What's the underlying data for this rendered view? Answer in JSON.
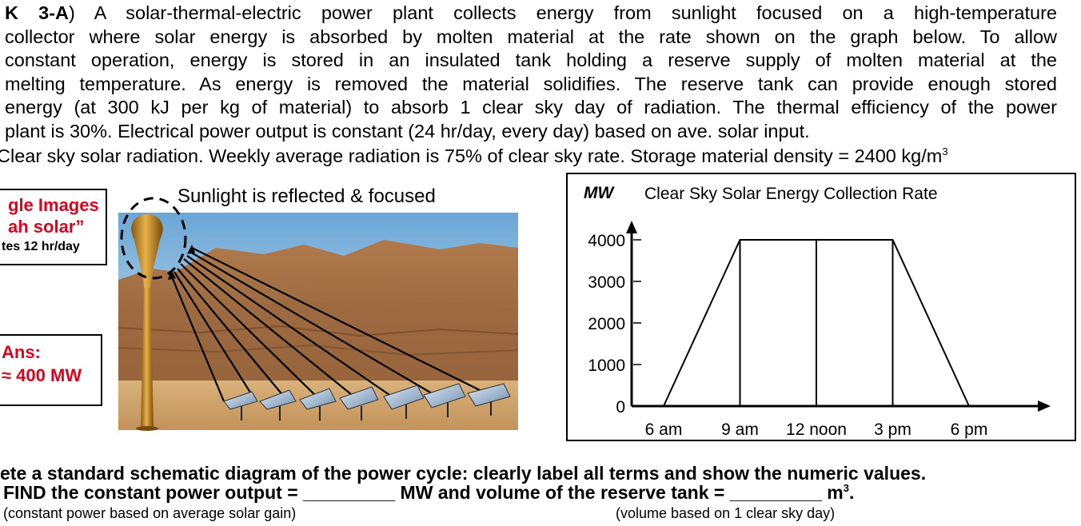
{
  "problem": {
    "label": "K 3-A",
    "lines": [
      ") A solar-thermal-electric power plant collects energy from sunlight focused on a high-temperature",
      "collector where solar energy is absorbed by molten material at the rate shown on the graph below.  To allow",
      "constant operation, energy is stored in an insulated tank holding a reserve supply of molten material at the",
      "melting temperature.  As energy is removed the material solidifies.  The reserve tank can provide enough stored",
      "energy (at 300 kJ per kg of material) to absorb 1 clear sky day of radiation.  The thermal efficiency of the power",
      "plant is 30%. Electrical power output is constant (24 hr/day, every day) based on ave. solar input."
    ],
    "line2": "Clear sky solar radiation. Weekly average radiation is 75% of clear sky rate. Storage material density = 2400 kg/m",
    "line2_sup": "3"
  },
  "google_box": {
    "line1": "gle Images",
    "line2": "ah solar”",
    "line3": "tes 12 hr/day"
  },
  "ans_box": {
    "line1": "Ans:",
    "line2": "≈ 400 MW"
  },
  "photo": {
    "caption": "Sunlight is reflected & focused"
  },
  "chart_data": {
    "type": "area",
    "title": "Clear Sky Solar Energy Collection Rate",
    "ylabel": "MW",
    "xlabel": "",
    "categories": [
      "6 am",
      "9 am",
      "12 noon",
      "3 pm",
      "6 pm"
    ],
    "x_hours": [
      6,
      9,
      12,
      15,
      18
    ],
    "yticks": [
      0,
      1000,
      2000,
      3000,
      4000
    ],
    "ylim": [
      0,
      4000
    ],
    "series": [
      {
        "x": [
          6,
          9,
          15,
          18
        ],
        "values": [
          0,
          4000,
          4000,
          0
        ]
      }
    ],
    "grid": false,
    "legend": "none"
  },
  "bottom": {
    "line1": "ete a standard schematic diagram of the power cycle: clearly label all terms and show the numeric values.",
    "find_a": "FIND the constant power output = ",
    "find_b": " MW and volume of the reserve tank = ",
    "find_c": " m",
    "find_sup": "3",
    "find_end": ".",
    "blank": "_________",
    "note_left": "(constant power based on average solar gain)",
    "note_right": "(volume based on 1 clear sky day)"
  }
}
